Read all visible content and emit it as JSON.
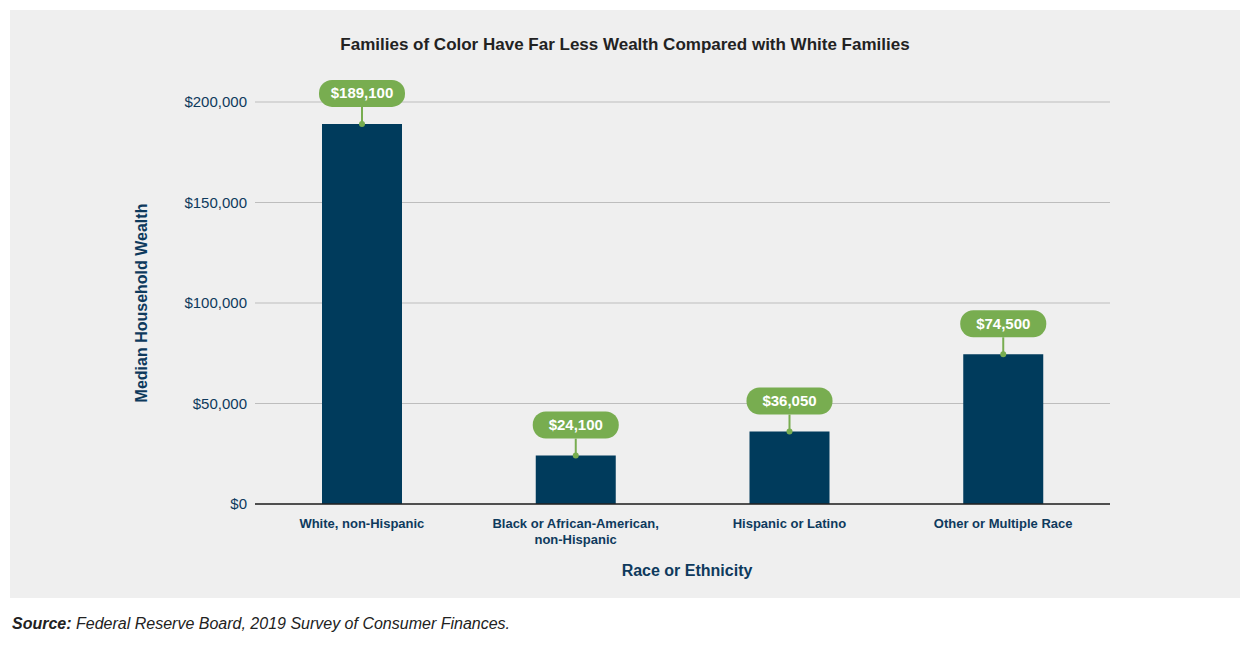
{
  "chart_data": {
    "type": "bar",
    "title": "Families of Color Have Far Less Wealth Compared with White Families",
    "categories": [
      "White, non-Hispanic",
      "Black or African-American, non-Hispanic",
      "Hispanic or Latino",
      "Other or Multiple Race"
    ],
    "values": [
      189100,
      24100,
      36050,
      74500
    ],
    "value_labels": [
      "$189,100",
      "$24,100",
      "$36,050",
      "$74,500"
    ],
    "color": "#003b5c",
    "ylim": [
      0,
      200000
    ],
    "yticks": [
      {
        "value": 0,
        "label": "$0"
      },
      {
        "value": 50000,
        "label": "$50,000"
      },
      {
        "value": 100000,
        "label": "$100,000"
      },
      {
        "value": 150000,
        "label": "$150,000"
      },
      {
        "value": 200000,
        "label": "$200,000"
      }
    ],
    "grid": true,
    "data_labels": true,
    "x_label": "Race or Ethnicity",
    "y_label": "Median Household Wealth",
    "source_label": "Source:",
    "source": "Federal Reserve Board, 2019 Survey of Consumer Finances."
  }
}
